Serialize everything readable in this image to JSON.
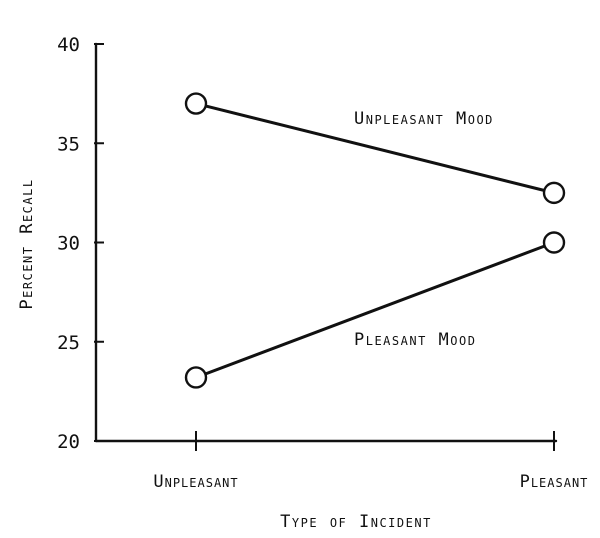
{
  "chart_data": {
    "type": "line",
    "title": "",
    "xlabel": "Type of Incident",
    "ylabel": "Percent Recall",
    "categories": [
      "Unpleasant",
      "Pleasant"
    ],
    "ylim": [
      20,
      40
    ],
    "yticks": [
      20,
      25,
      30,
      35,
      40
    ],
    "grid": false,
    "legend": "inline labels near lines",
    "series": [
      {
        "name": "Unpleasant Mood",
        "values": [
          37,
          32.5
        ]
      },
      {
        "name": "Pleasant Mood",
        "values": [
          23.2,
          30
        ]
      }
    ]
  }
}
